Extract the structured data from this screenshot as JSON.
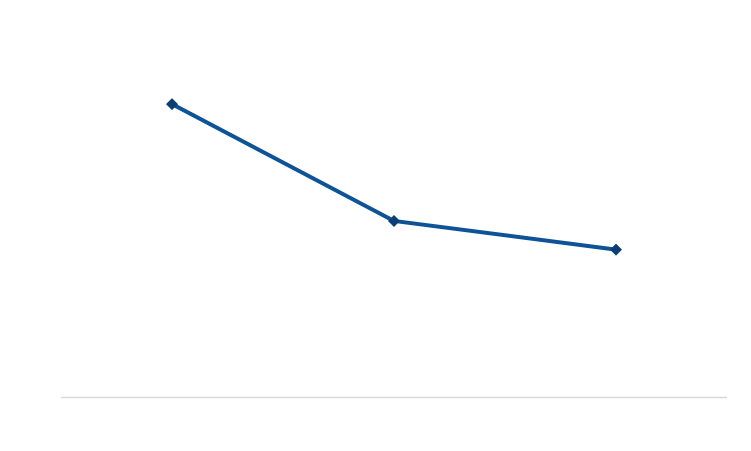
{
  "colors": {
    "background": "#ffffff",
    "series_line": "#0e5396",
    "series_marker": "#0b3f74",
    "baseline": "#d9d9d9"
  },
  "chart_data": {
    "type": "line",
    "categories": [
      "",
      "",
      ""
    ],
    "series": [
      {
        "values": [
          77.7,
          46.7,
          39.1
        ],
        "marker": "diamond"
      }
    ],
    "title": "",
    "xlabel": "",
    "ylabel": "",
    "ylim": [
      0,
      100
    ],
    "grid": false,
    "legend": "none"
  }
}
